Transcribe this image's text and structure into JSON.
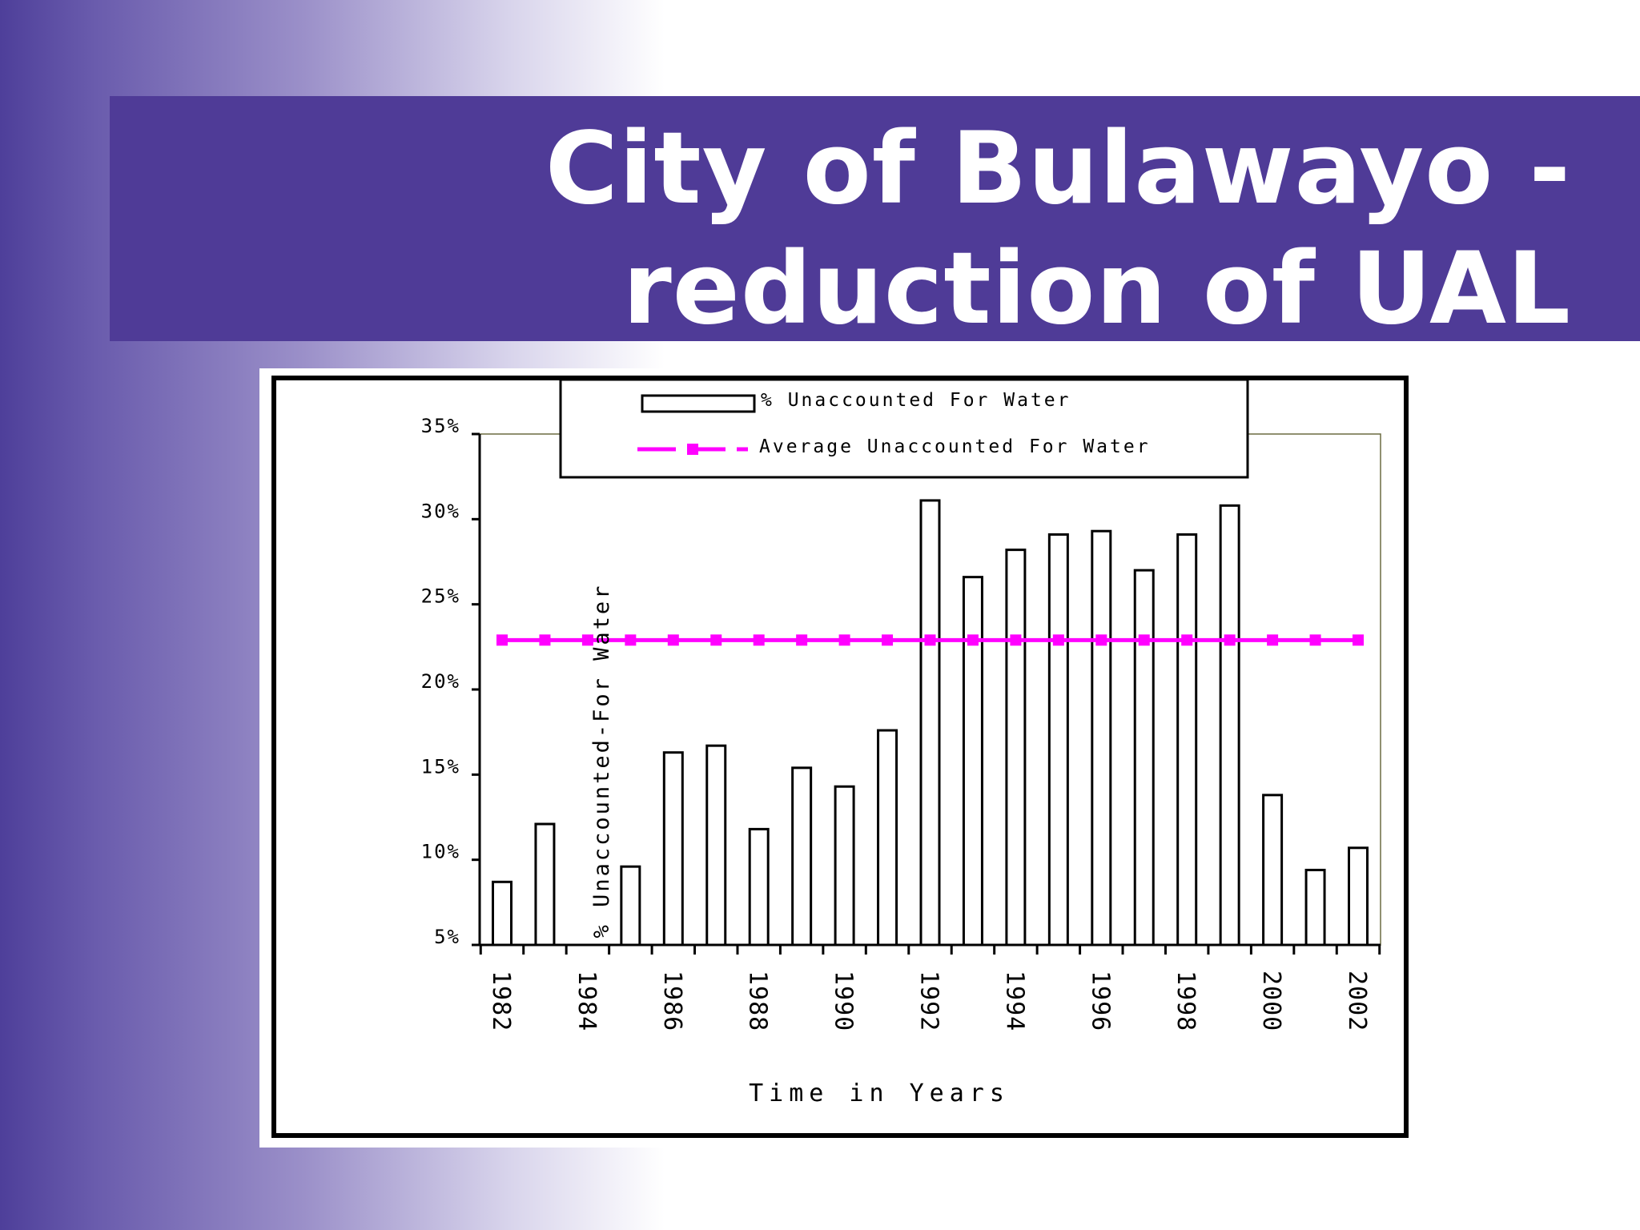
{
  "slide": {
    "title_line1": "City of Bulawayo -",
    "title_line2": "reduction of UAL"
  },
  "chart_data": {
    "type": "bar",
    "xlabel": "Time in Years",
    "ylabel": "% Unaccounted-For Water",
    "ylim": [
      5,
      35
    ],
    "ytick_labels": [
      "5%",
      "10%",
      "15%",
      "20%",
      "25%",
      "30%",
      "35%"
    ],
    "ytick_values": [
      5,
      10,
      15,
      20,
      25,
      30,
      35
    ],
    "xtick_labels": [
      "1982",
      "1984",
      "1986",
      "1988",
      "1990",
      "1992",
      "1994",
      "1996",
      "1998",
      "2000",
      "2002"
    ],
    "categories": [
      "1982",
      "1983",
      "1984",
      "1985",
      "1986",
      "1987",
      "1988",
      "1989",
      "1990",
      "1991",
      "1992",
      "1993",
      "1994",
      "1995",
      "1996",
      "1997",
      "1998",
      "1999",
      "2000",
      "2001",
      "2002"
    ],
    "series": [
      {
        "name": "% Unaccounted For Water",
        "kind": "bar",
        "values": [
          8.7,
          12.1,
          null,
          9.6,
          16.3,
          16.7,
          11.8,
          15.4,
          14.3,
          17.6,
          31.1,
          26.6,
          28.2,
          29.1,
          29.3,
          27.0,
          29.1,
          30.8,
          13.8,
          9.4,
          10.7
        ],
        "color": "#ffffff"
      },
      {
        "name": "Average Unaccounted For Water",
        "kind": "line",
        "value": 22.9,
        "color": "#ff00ff"
      }
    ],
    "legend_position": "top-center",
    "grid": false
  }
}
